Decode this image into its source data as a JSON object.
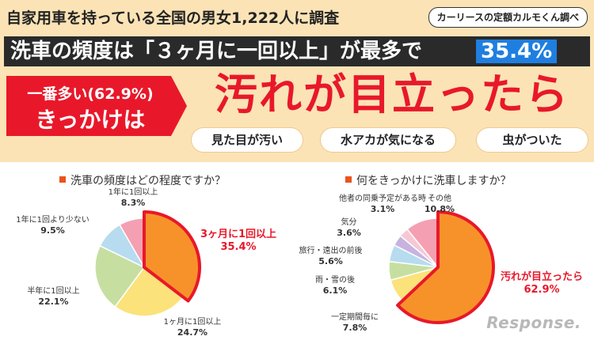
{
  "header": {
    "top_title": "自家用車を持っている全国の男女1,222人に調査",
    "source": "カーリースの定額カルモくん調べ",
    "headline_text": "洗車の頻度は「３ヶ月に一回以上」が最多で",
    "headline_pct": "35.4%",
    "trigger_line1": "一番多い(62.9%)",
    "trigger_line2": "きっかけは",
    "top_reason": "汚れが目立ったら",
    "tags": [
      "見た目が汚い",
      "水アカが気になる",
      "虫がついた"
    ]
  },
  "colors": {
    "header_bg": "#fbe3b6",
    "accent_red": "#e8182a",
    "accent_blue": "#1e7fe0",
    "pie_highlight": "#f7922a",
    "pie_outline": "#e8182a"
  },
  "watermark": "Response.",
  "chart_data": [
    {
      "type": "pie",
      "title": "洗車の頻度はどの程度ですか？",
      "start": "12 o'clock, clockwise",
      "slices": [
        {
          "label": "3ヶ月に1回以上",
          "value": 35.4,
          "pct": "35.4%",
          "color": "#f7922a",
          "highlight": true
        },
        {
          "label": "1ヶ月に1回以上",
          "value": 24.7,
          "pct": "24.7%",
          "color": "#fbe27a",
          "highlight": false
        },
        {
          "label": "半年に1回以上",
          "value": 22.1,
          "pct": "22.1%",
          "color": "#c6dfa1",
          "highlight": false
        },
        {
          "label": "1年に1回より少ない",
          "value": 9.5,
          "pct": "9.5%",
          "color": "#b7dcef",
          "highlight": false
        },
        {
          "label": "1年に1回以上",
          "value": 8.3,
          "pct": "8.3%",
          "color": "#f4a0b2",
          "highlight": false
        }
      ]
    },
    {
      "type": "pie",
      "title": "何をきっかけに洗車しますか？",
      "start": "12 o'clock, clockwise",
      "slices": [
        {
          "label": "汚れが目立ったら",
          "value": 62.9,
          "pct": "62.9%",
          "color": "#f7922a",
          "highlight": true
        },
        {
          "label": "一定期間毎に",
          "value": 7.8,
          "pct": "7.8%",
          "color": "#fbe27a",
          "highlight": false
        },
        {
          "label": "雨・雪の後",
          "value": 6.1,
          "pct": "6.1%",
          "color": "#c6dfa1",
          "highlight": false
        },
        {
          "label": "旅行・遠出の前後",
          "value": 5.6,
          "pct": "5.6%",
          "color": "#b7dcef",
          "highlight": false
        },
        {
          "label": "気分",
          "value": 3.6,
          "pct": "3.6%",
          "color": "#c7b3e0",
          "highlight": false
        },
        {
          "label": "他者の同乗予定がある時",
          "value": 3.1,
          "pct": "3.1%",
          "color": "#f6c8d6",
          "highlight": false
        },
        {
          "label": "その他",
          "value": 10.8,
          "pct": "10.8%",
          "color": "#f4a0b2",
          "highlight": false
        }
      ]
    }
  ]
}
